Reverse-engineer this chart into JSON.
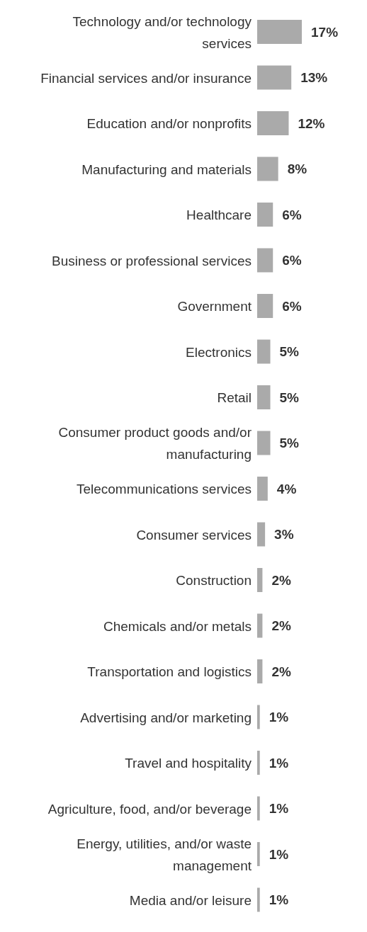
{
  "chart_data": {
    "type": "bar",
    "orientation": "horizontal",
    "categories": [
      "Technology and/or technology services",
      "Financial services and/or insurance",
      "Education and/or nonprofits",
      "Manufacturing and materials",
      "Healthcare",
      "Business or professional services",
      "Government",
      "Electronics",
      "Retail",
      "Consumer product goods and/or manufacturing",
      "Telecommunications services",
      "Consumer services",
      "Construction",
      "Chemicals and/or metals",
      "Transportation and logistics",
      "Advertising and/or marketing",
      "Travel and hospitality",
      "Agriculture, food, and/or beverage",
      "Energy, utilities, and/or waste management",
      "Media and/or leisure"
    ],
    "values": [
      17,
      13,
      12,
      8,
      6,
      6,
      6,
      5,
      5,
      5,
      4,
      3,
      2,
      2,
      2,
      1,
      1,
      1,
      1,
      1
    ],
    "value_labels": [
      "17%",
      "13%",
      "12%",
      "8%",
      "6%",
      "6%",
      "6%",
      "5%",
      "5%",
      "5%",
      "4%",
      "3%",
      "2%",
      "2%",
      "2%",
      "1%",
      "1%",
      "1%",
      "1%",
      "1%"
    ],
    "color": "#aaaaaa",
    "tick_labels": "y",
    "grid": false,
    "legend": false
  }
}
